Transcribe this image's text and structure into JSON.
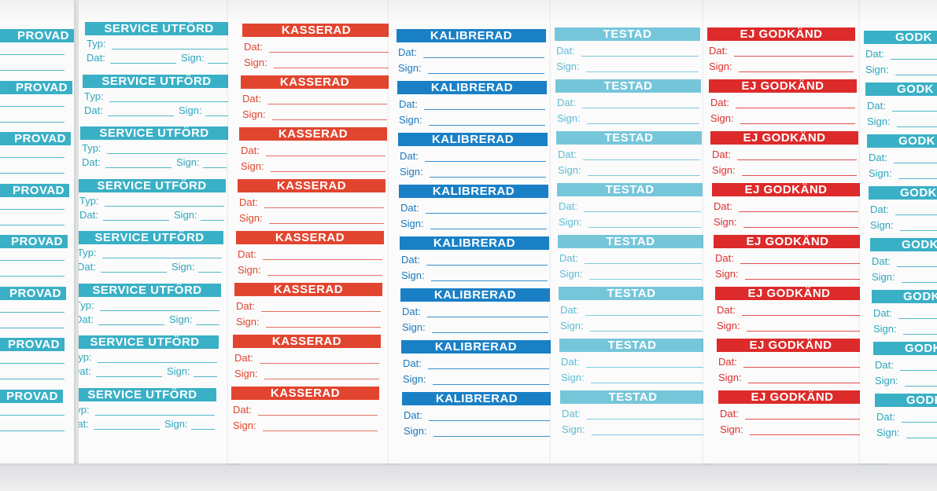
{
  "columns": [
    {
      "title": "PROVAD",
      "title_cut": "PROVAD",
      "has_typ": false,
      "typ_label": "",
      "dat_label": "",
      "sign_label": "",
      "color_scheme": "teal",
      "tag_count": 8
    },
    {
      "title": "SERVICE UTFÖRD",
      "has_typ": true,
      "typ_label": "Typ:",
      "dat_label": "Dat:",
      "sign_label": "Sign:",
      "color_scheme": "teal",
      "tag_count": 8
    },
    {
      "title": "KASSERAD",
      "has_typ": false,
      "dat_label": "Dat:",
      "sign_label": "Sign:",
      "color_scheme": "red",
      "tag_count": 8
    },
    {
      "title": "KALIBRERAD",
      "has_typ": false,
      "dat_label": "Dat:",
      "sign_label": "Sign:",
      "color_scheme": "blue",
      "tag_count": 8
    },
    {
      "title": "TESTAD",
      "has_typ": false,
      "dat_label": "Dat:",
      "sign_label": "Sign:",
      "color_scheme": "light-teal",
      "tag_count": 8
    },
    {
      "title": "EJ GODKÄND",
      "has_typ": false,
      "dat_label": "Dat:",
      "sign_label": "Sign:",
      "color_scheme": "crimson",
      "tag_count": 8
    },
    {
      "title": "GODKÄND",
      "title_cut": "GODK",
      "has_typ": false,
      "dat_label": "Dat:",
      "sign_label": "Sign:",
      "color_scheme": "teal",
      "tag_count": 8
    }
  ],
  "colors": {
    "teal": "#3ab0c6",
    "red": "#e2452f",
    "blue": "#1a80c6",
    "light-teal": "#76c6da",
    "crimson": "#dd2a2a",
    "paper": "#fbfbfb",
    "background": "#e8e9ea"
  }
}
